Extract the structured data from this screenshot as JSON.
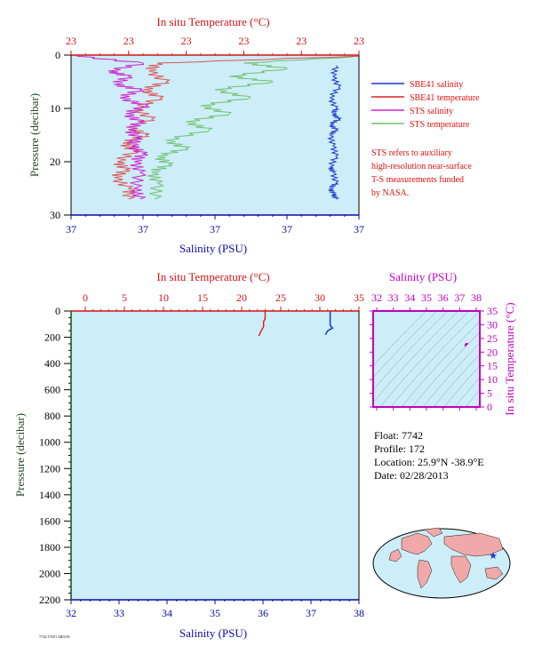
{
  "colors": {
    "plot_bg": "#cdeef8",
    "temp_axis": "#d41414",
    "sal_axis": "#0a0aa8",
    "pres_axis": "#1f4a1f",
    "ts_axis": "#c000c0",
    "sbe_sal": "#1a33d4",
    "sbe_temp": "#e02020",
    "sts_sal": "#d020d0",
    "sts_temp": "#70c070"
  },
  "top_plot": {
    "temp_title": "In situ Temperature (°C)",
    "temp_ticks": [
      "23",
      "23",
      "23",
      "23",
      "23",
      "23"
    ],
    "sal_title": "Salinity (PSU)",
    "sal_ticks": [
      "37",
      "37",
      "37",
      "37",
      "37"
    ],
    "pres_title": "Pressure (decibar)",
    "pres_ticks": [
      "0",
      "10",
      "20",
      "30"
    ]
  },
  "legend": {
    "items": [
      {
        "label": "SBE41 salinity",
        "color": "#1a33d4"
      },
      {
        "label": "SBE41 temperature",
        "color": "#e02020"
      },
      {
        "label": "STS salinity",
        "color": "#d020d0"
      },
      {
        "label": "STS temperature",
        "color": "#70c070"
      }
    ],
    "note_lines": [
      "STS refers to auxiliary",
      "high-resolution near-surface",
      "T-S measurements funded",
      "by NASA."
    ]
  },
  "main_plot": {
    "temp_title": "In situ Temperature (°C)",
    "temp_ticks": [
      "0",
      "5",
      "10",
      "15",
      "20",
      "25",
      "30",
      "35"
    ],
    "sal_title": "Salinity (PSU)",
    "sal_ticks": [
      "32",
      "33",
      "34",
      "35",
      "36",
      "37",
      "38"
    ],
    "pres_title": "Pressure (decibar)",
    "pres_ticks": [
      "0",
      "200",
      "400",
      "600",
      "800",
      "1000",
      "1200",
      "1400",
      "1600",
      "1800",
      "2000",
      "2200"
    ]
  },
  "ts_plot": {
    "sal_title": "Salinity (PSU)",
    "sal_ticks": [
      "32",
      "33",
      "34",
      "35",
      "36",
      "37",
      "38"
    ],
    "temp_title": "In situ Temperature (°C)",
    "temp_ticks": [
      "0",
      "5",
      "10",
      "15",
      "20",
      "25",
      "30",
      "35"
    ]
  },
  "info": {
    "float": "Float:  7742",
    "profile": "Profile:  172",
    "location": "Location:  25.9°N  -38.9°E",
    "date": "Date:  02/28/2013"
  },
  "footer_code": "7742/172/01 ARGOS",
  "chart_data": [
    {
      "type": "line",
      "title": "",
      "xlabel": "In situ Temperature (°C) / Salinity (PSU)",
      "ylabel": "Pressure (decibar)",
      "ylim": [
        0,
        30
      ],
      "y_reversed": true,
      "series": [
        {
          "name": "SBE41 salinity",
          "x_norm": [
            0.92,
            0.91,
            0.93,
            0.9,
            0.92,
            0.91,
            0.93,
            0.9,
            0.92,
            0.9,
            0.91,
            0.92,
            0.9,
            0.91,
            0.92,
            0.9,
            0.91,
            0.92
          ],
          "y": [
            2,
            4,
            6,
            8,
            10,
            11,
            12,
            13,
            14,
            15,
            17,
            19,
            21,
            22,
            24,
            25,
            26,
            27
          ]
        },
        {
          "name": "SBE41 temperature",
          "x_norm": [
            1.0,
            0.3,
            0.27,
            0.33,
            0.25,
            0.31,
            0.22,
            0.28,
            0.2,
            0.26,
            0.18,
            0.22,
            0.16,
            0.19,
            0.15,
            0.2,
            0.2
          ],
          "y": [
            0.2,
            1.5,
            3,
            5,
            6.5,
            8,
            10,
            12,
            13.5,
            15,
            16.5,
            18,
            20,
            21.5,
            23,
            25,
            27
          ]
        },
        {
          "name": "STS salinity",
          "x_norm": [
            0.02,
            0.25,
            0.13,
            0.2,
            0.15,
            0.24,
            0.17,
            0.26,
            0.19,
            0.24,
            0.2,
            0.23,
            0.21,
            0.25,
            0.22,
            0.24,
            0.22,
            0.24
          ],
          "y": [
            0.2,
            1.5,
            3,
            4,
            5.5,
            6.5,
            8,
            9.5,
            11,
            12.5,
            14,
            15.5,
            17,
            18.5,
            20,
            22,
            25,
            27
          ]
        },
        {
          "name": "STS temperature",
          "x_norm": [
            0.98,
            0.6,
            0.75,
            0.55,
            0.7,
            0.5,
            0.62,
            0.45,
            0.55,
            0.4,
            0.48,
            0.33,
            0.4,
            0.3,
            0.34,
            0.28,
            0.3,
            0.29
          ],
          "y": [
            0.3,
            1.5,
            2.5,
            4,
            5,
            6.5,
            8,
            9.5,
            11,
            12.5,
            14,
            16,
            17.5,
            19,
            20.5,
            22,
            24,
            27
          ]
        }
      ]
    },
    {
      "type": "line",
      "title": "",
      "xlabel": "Salinity (PSU)",
      "ylabel": "Pressure (decibar)",
      "xlim": [
        32,
        38
      ],
      "ylim": [
        0,
        2200
      ],
      "x2lim": [
        0,
        35
      ],
      "y_reversed": true,
      "series": [
        {
          "name": "SBE41 temperature",
          "axis": "temperature",
          "x": [
            23.0,
            23.0,
            22.8,
            22.8,
            22.5,
            22.2
          ],
          "y": [
            0,
            60,
            80,
            120,
            150,
            190
          ]
        },
        {
          "name": "SBE41 salinity",
          "axis": "salinity",
          "x": [
            37.4,
            37.4,
            37.45,
            37.35,
            37.3
          ],
          "y": [
            0,
            110,
            130,
            150,
            180
          ]
        }
      ]
    },
    {
      "type": "scatter",
      "title": "",
      "xlabel": "Salinity (PSU)",
      "ylabel": "In situ Temperature (°C)",
      "xlim": [
        32,
        38
      ],
      "ylim": [
        0,
        35
      ],
      "series": [
        {
          "name": "T-S",
          "x": [
            37.35,
            37.4,
            37.45
          ],
          "y": [
            22.5,
            23.0,
            23.0
          ]
        }
      ]
    }
  ]
}
